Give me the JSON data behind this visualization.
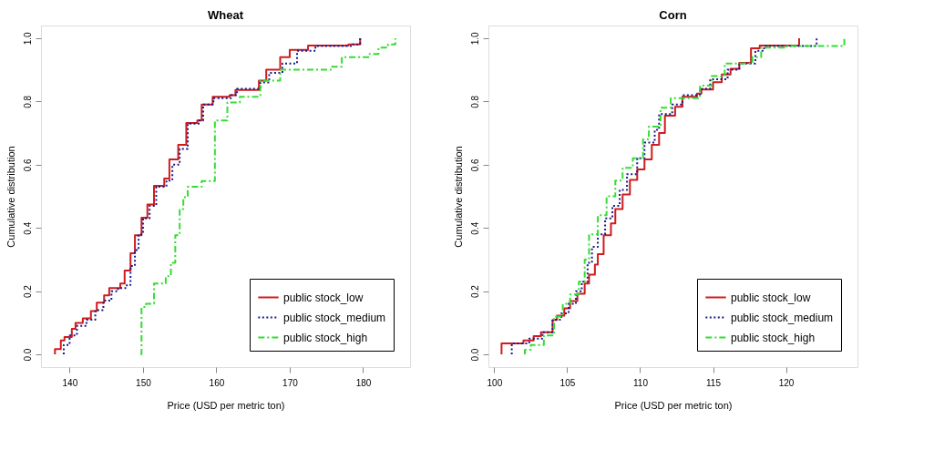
{
  "chart_data": [
    {
      "type": "step",
      "title": "Wheat",
      "xlabel": "Price (USD per metric ton)",
      "ylabel": "Cumulative distribution",
      "xlim": [
        136.1,
        186.4
      ],
      "xticks": [
        140,
        150,
        160,
        170,
        180
      ],
      "ylim": [
        -0.04,
        1.04
      ],
      "yticks": [
        {
          "value": 0,
          "label": "0.0"
        },
        {
          "value": 0.2,
          "label": "0.2"
        },
        {
          "value": 0.4,
          "label": "0.4"
        },
        {
          "value": 0.6,
          "label": "0.6"
        },
        {
          "value": 0.8,
          "label": "0.8"
        },
        {
          "value": 1,
          "label": "1.0"
        }
      ],
      "grid": false,
      "legend": "bottom right",
      "series": [
        {
          "name": "public stock_low",
          "color": "#d01c1c",
          "line_style": "solid",
          "x": [
            138.0,
            138.0,
            138.8,
            139.3,
            140.3,
            140.8,
            141.8,
            142.9,
            143.7,
            144.7,
            145.4,
            146.9,
            147.5,
            148.3,
            148.9,
            149.8,
            150.6,
            151.5,
            152.9,
            153.6,
            154.8,
            155.9,
            157.4,
            158.0,
            159.5,
            161.8,
            162.6,
            165.8,
            166.8,
            168.7,
            170.0,
            172.5,
            178.0,
            179.6,
            179.6
          ],
          "values": [
            0,
            0.017,
            0.044,
            0.055,
            0.081,
            0.1,
            0.114,
            0.137,
            0.164,
            0.187,
            0.21,
            0.224,
            0.265,
            0.32,
            0.377,
            0.432,
            0.474,
            0.533,
            0.556,
            0.617,
            0.663,
            0.732,
            0.74,
            0.79,
            0.815,
            0.82,
            0.836,
            0.866,
            0.9,
            0.94,
            0.963,
            0.977,
            0.98,
            0.99,
            1.0
          ]
        },
        {
          "name": "public stock_medium",
          "color": "#1a1a8c",
          "line_style": "dotted",
          "x": [
            139.2,
            139.2,
            140.0,
            141.0,
            142.3,
            143.5,
            144.6,
            145.7,
            146.6,
            147.8,
            148.3,
            148.9,
            149.4,
            150.0,
            150.9,
            151.8,
            153.2,
            154.0,
            155.0,
            156.1,
            157.6,
            158.2,
            159.6,
            162.0,
            162.8,
            166.0,
            167.2,
            169.0,
            171.0,
            173.5,
            178.5,
            179.6
          ],
          "values": [
            0,
            0.03,
            0.06,
            0.09,
            0.11,
            0.14,
            0.17,
            0.2,
            0.21,
            0.22,
            0.28,
            0.33,
            0.38,
            0.43,
            0.47,
            0.53,
            0.55,
            0.6,
            0.65,
            0.73,
            0.74,
            0.79,
            0.81,
            0.82,
            0.84,
            0.86,
            0.89,
            0.92,
            0.96,
            0.975,
            0.98,
            1.0
          ]
        },
        {
          "name": "public stock_high",
          "color": "#33dd33",
          "line_style": "dashed",
          "x": [
            149.7,
            149.8,
            150.4,
            151.5,
            153.1,
            153.8,
            154.4,
            155.0,
            155.5,
            156.1,
            158.0,
            159.8,
            161.5,
            163.2,
            166.0,
            168.7,
            175.6,
            177.1,
            180.9,
            182.1,
            183.4,
            184.4
          ],
          "values": [
            0,
            0.15,
            0.16,
            0.224,
            0.247,
            0.29,
            0.377,
            0.46,
            0.497,
            0.53,
            0.548,
            0.74,
            0.797,
            0.815,
            0.866,
            0.9,
            0.91,
            0.94,
            0.95,
            0.97,
            0.98,
            1.0
          ]
        }
      ]
    },
    {
      "type": "step",
      "title": "Corn",
      "xlabel": "Price (USD per metric ton)",
      "ylabel": "Cumulative distribution",
      "xlim": [
        99.6,
        124.9
      ],
      "xticks": [
        100,
        105,
        110,
        115,
        120
      ],
      "ylim": [
        -0.04,
        1.04
      ],
      "yticks": [
        {
          "value": 0,
          "label": "0.0"
        },
        {
          "value": 0.2,
          "label": "0.2"
        },
        {
          "value": 0.4,
          "label": "0.4"
        },
        {
          "value": 0.6,
          "label": "0.6"
        },
        {
          "value": 0.8,
          "label": "0.8"
        },
        {
          "value": 1,
          "label": "1.0"
        }
      ],
      "grid": false,
      "legend": "bottom right",
      "series": [
        {
          "name": "public stock_low",
          "color": "#d01c1c",
          "line_style": "solid",
          "x": [
            100.5,
            100.5,
            102.0,
            102.7,
            103.2,
            104.0,
            104.3,
            104.8,
            105.2,
            105.7,
            106.2,
            106.5,
            106.9,
            107.1,
            107.5,
            108.0,
            108.3,
            108.8,
            109.3,
            109.8,
            110.3,
            110.8,
            111.3,
            111.7,
            112.4,
            112.9,
            113.9,
            114.2,
            115.0,
            115.6,
            116.2,
            116.8,
            117.6,
            118.2,
            120.9
          ],
          "values": [
            0,
            0.035,
            0.044,
            0.058,
            0.07,
            0.109,
            0.123,
            0.146,
            0.169,
            0.192,
            0.224,
            0.252,
            0.284,
            0.317,
            0.377,
            0.414,
            0.46,
            0.506,
            0.552,
            0.585,
            0.617,
            0.663,
            0.7,
            0.755,
            0.783,
            0.815,
            0.825,
            0.838,
            0.861,
            0.885,
            0.903,
            0.922,
            0.968,
            0.977,
            1.0
          ]
        },
        {
          "name": "public stock_medium",
          "color": "#1a1a8c",
          "line_style": "dotted",
          "x": [
            101.2,
            101.2,
            102.4,
            103.3,
            104.0,
            104.6,
            105.1,
            105.6,
            106.0,
            106.4,
            106.7,
            107.1,
            107.6,
            108.1,
            108.6,
            109.1,
            109.8,
            110.3,
            111.0,
            111.3,
            112.2,
            112.9,
            114.1,
            114.8,
            116.0,
            116.8,
            117.9,
            118.5,
            122.1
          ],
          "values": [
            0,
            0.035,
            0.05,
            0.07,
            0.11,
            0.13,
            0.16,
            0.2,
            0.23,
            0.29,
            0.34,
            0.38,
            0.43,
            0.47,
            0.52,
            0.57,
            0.62,
            0.67,
            0.71,
            0.76,
            0.79,
            0.82,
            0.84,
            0.87,
            0.9,
            0.92,
            0.96,
            0.975,
            1.0
          ]
        },
        {
          "name": "public stock_high",
          "color": "#33dd33",
          "line_style": "dashed",
          "x": [
            102.1,
            102.1,
            102.5,
            103.4,
            104.1,
            104.7,
            105.2,
            105.8,
            106.2,
            106.5,
            107.1,
            107.7,
            108.3,
            108.8,
            109.5,
            110.2,
            110.6,
            111.4,
            112.1,
            114.1,
            114.9,
            115.8,
            117.7,
            118.3,
            119.9,
            124.0
          ],
          "values": [
            0,
            0.015,
            0.03,
            0.06,
            0.12,
            0.16,
            0.19,
            0.23,
            0.3,
            0.38,
            0.44,
            0.5,
            0.55,
            0.59,
            0.62,
            0.68,
            0.72,
            0.78,
            0.81,
            0.85,
            0.88,
            0.92,
            0.94,
            0.97,
            0.975,
            1.0
          ]
        }
      ]
    }
  ]
}
